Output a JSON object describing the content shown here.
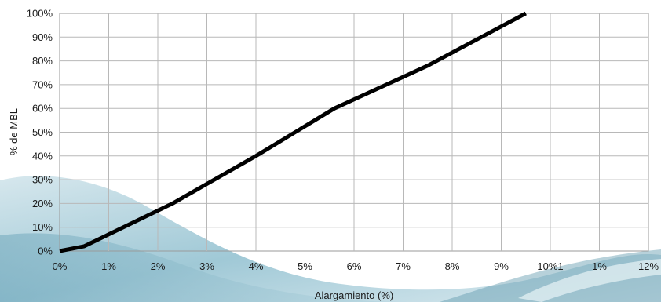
{
  "chart_data": {
    "type": "line",
    "title": "",
    "xlabel": "Alargamiento (%)",
    "ylabel": "% de MBL",
    "xlim": [
      0,
      12
    ],
    "ylim": [
      0,
      100
    ],
    "grid": true,
    "x_tick_labels": [
      "0%",
      "1%",
      "2%",
      "3%",
      "4%",
      "5%",
      "6%",
      "7%",
      "8%",
      "9%",
      "10%1",
      "1%",
      "12%"
    ],
    "y_tick_labels": [
      "0%",
      "10%",
      "20%",
      "30%",
      "40%",
      "50%",
      "60%",
      "70%",
      "80%",
      "90%",
      "100%"
    ],
    "series": [
      {
        "x": [
          0,
          0.5,
          1.0,
          2.3,
          4.0,
          5.6,
          7.5,
          9.5
        ],
        "y": [
          0,
          2,
          7,
          20,
          40,
          60,
          78,
          100
        ]
      }
    ],
    "colors": {
      "line": "#000000",
      "grid": "#b8b8b8",
      "frame": "#9a9a9a"
    }
  }
}
